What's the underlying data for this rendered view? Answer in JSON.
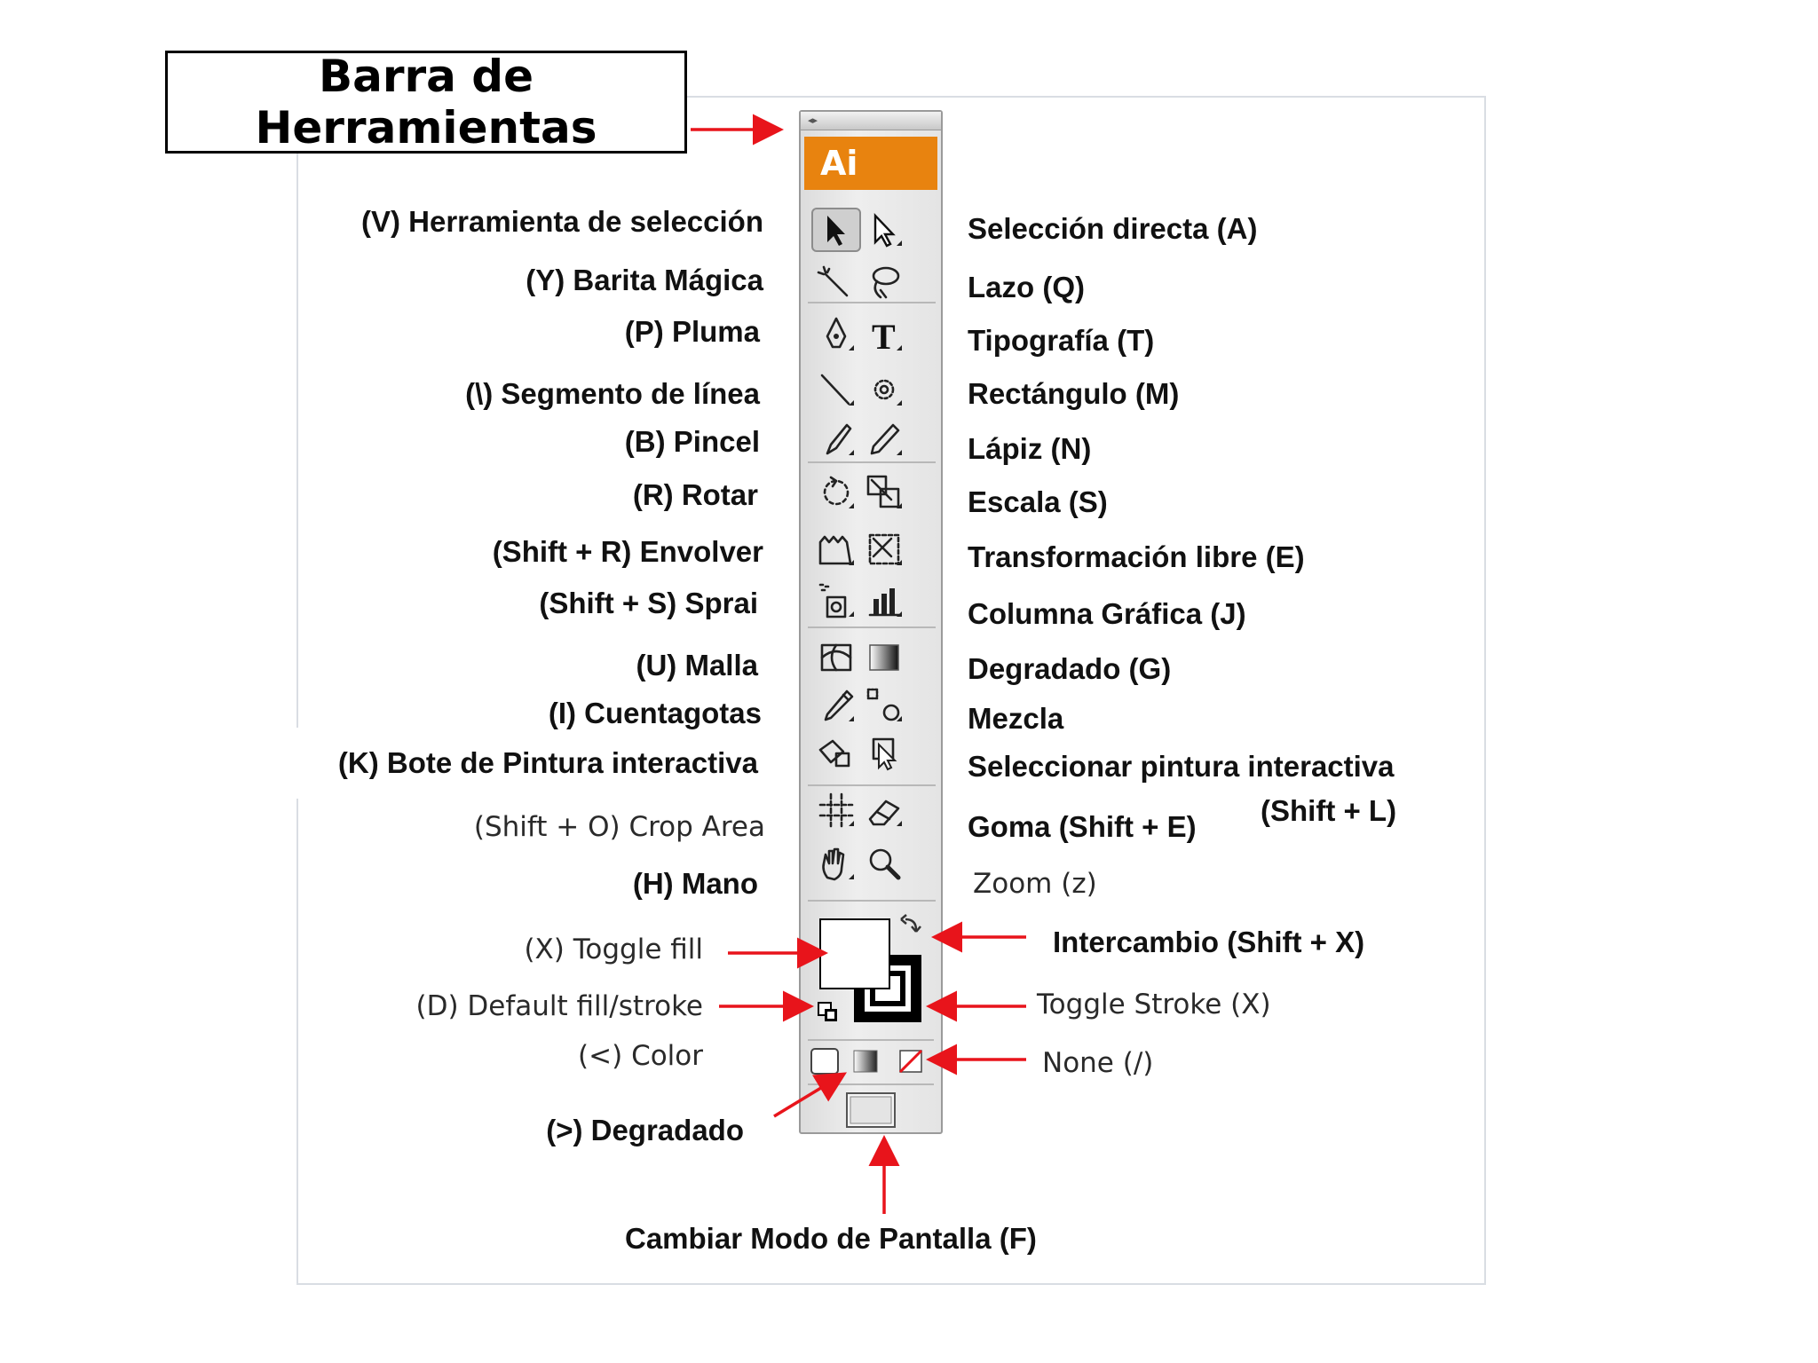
{
  "title": {
    "line1": "Barra de",
    "line2": "Herramientas"
  },
  "toolbar": {
    "logo": "Ai",
    "grip": "◂▸"
  },
  "left_labels": [
    "(V) Herramienta de selección",
    "(Y) Barita Mágica",
    "(P) Pluma",
    "(\\) Segmento de línea",
    "(B) Pincel",
    "(R) Rotar",
    "(Shift + R) Envolver",
    "(Shift + S) Sprai",
    "(U) Malla",
    "(I) Cuentagotas",
    "(K) Bote de Pintura interactiva",
    "(Shift + O) Crop Area",
    "(H) Mano",
    "(X) Toggle fill",
    "(D) Default fill/stroke",
    "(<) Color",
    "(>) Degradado"
  ],
  "right_labels": [
    "Selección directa (A)",
    "Lazo (Q)",
    "Tipografía (T)",
    "Rectángulo (M)",
    "Lápiz (N)",
    "Escala (S)",
    "Transformación libre (E)",
    "Columna Gráfica (J)",
    "Degradado (G)",
    "Mezcla",
    "Seleccionar pintura interactiva",
    "(Shift + L)",
    "Goma (Shift + E)",
    "Zoom (z)",
    "Intercambio (Shift + X)",
    "Toggle Stroke (X)",
    "None (/)"
  ],
  "bottom_label": "Cambiar Modo de Pantalla (F)",
  "tools": [
    {
      "name": "selection-tool-icon"
    },
    {
      "name": "direct-selection-tool-icon"
    },
    {
      "name": "magic-wand-tool-icon"
    },
    {
      "name": "lasso-tool-icon"
    },
    {
      "name": "pen-tool-icon"
    },
    {
      "name": "type-tool-icon"
    },
    {
      "name": "line-segment-tool-icon"
    },
    {
      "name": "rectangle-tool-icon"
    },
    {
      "name": "paintbrush-tool-icon"
    },
    {
      "name": "pencil-tool-icon"
    },
    {
      "name": "rotate-tool-icon"
    },
    {
      "name": "scale-tool-icon"
    },
    {
      "name": "warp-tool-icon"
    },
    {
      "name": "free-transform-tool-icon"
    },
    {
      "name": "symbol-sprayer-tool-icon"
    },
    {
      "name": "column-graph-tool-icon"
    },
    {
      "name": "mesh-tool-icon"
    },
    {
      "name": "gradient-tool-icon"
    },
    {
      "name": "eyedropper-tool-icon"
    },
    {
      "name": "blend-tool-icon"
    },
    {
      "name": "live-paint-bucket-tool-icon"
    },
    {
      "name": "live-paint-selection-tool-icon"
    },
    {
      "name": "crop-area-tool-icon"
    },
    {
      "name": "eraser-tool-icon"
    },
    {
      "name": "hand-tool-icon"
    },
    {
      "name": "zoom-tool-icon"
    }
  ],
  "colors": {
    "logo": "#e8830f",
    "arrow": "#e8141b",
    "frame": "#d9dde3"
  }
}
